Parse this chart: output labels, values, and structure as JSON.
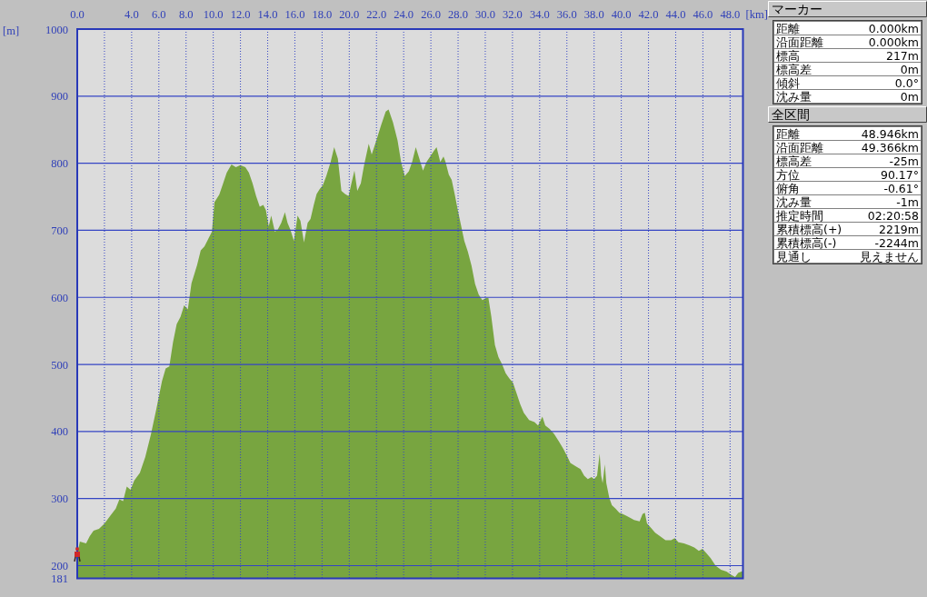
{
  "chart_data": [
    {
      "type": "area",
      "xlabel": "[km]",
      "ylabel": "[m]",
      "x": [
        0,
        0.19,
        0.65,
        0.92,
        1.2,
        1.6,
        2.01,
        2.42,
        2.83,
        3.1,
        3.37,
        3.64,
        3.92,
        4.19,
        4.6,
        5.0,
        5.41,
        5.82,
        6.23,
        6.5,
        6.77,
        7.04,
        7.31,
        7.59,
        7.86,
        8.13,
        8.4,
        8.81,
        9.08,
        9.35,
        9.63,
        9.9,
        10.09,
        10.44,
        10.71,
        10.99,
        11.34,
        11.66,
        11.99,
        12.36,
        12.62,
        12.89,
        13.15,
        13.42,
        13.68,
        13.87,
        14.08,
        14.26,
        14.53,
        14.74,
        15.0,
        15.27,
        15.46,
        15.67,
        15.93,
        16.2,
        16.41,
        16.67,
        16.94,
        17.15,
        17.39,
        17.6,
        17.84,
        18.05,
        18.31,
        18.63,
        18.89,
        19.16,
        19.42,
        19.69,
        19.95,
        20.16,
        20.38,
        20.59,
        20.85,
        21.09,
        21.43,
        21.65,
        21.96,
        22.33,
        22.68,
        22.89,
        23.21,
        23.55,
        23.81,
        24.08,
        24.38,
        24.62,
        24.89,
        25.15,
        25.42,
        25.68,
        25.95,
        26.21,
        26.42,
        26.69,
        26.93,
        27.08,
        27.32,
        27.53,
        27.75,
        27.98,
        28.2,
        28.46,
        28.72,
        28.99,
        29.25,
        29.52,
        29.78,
        30.05,
        30.23,
        30.44,
        30.71,
        30.97,
        31.24,
        31.5,
        31.77,
        32.03,
        32.3,
        32.56,
        32.83,
        33.22,
        33.62,
        33.88,
        34.2,
        34.41,
        34.73,
        35.07,
        35.42,
        35.74,
        36.0,
        36.26,
        36.66,
        37.0,
        37.27,
        37.54,
        37.81,
        38.0,
        38.22,
        38.41,
        38.52,
        38.63,
        38.79,
        38.9,
        39.12,
        39.31,
        39.58,
        39.85,
        40.12,
        40.39,
        40.67,
        40.94,
        41.35,
        41.56,
        41.73,
        41.89,
        42.16,
        42.49,
        42.84,
        43.25,
        43.66,
        43.93,
        44.2,
        44.61,
        45.02,
        45.37,
        45.7,
        45.97,
        46.24,
        46.57,
        46.93,
        47.33,
        47.74,
        48.1,
        48.37,
        48.59,
        48.83,
        48.946
      ],
      "values": [
        217,
        236,
        233,
        244,
        252,
        255,
        263,
        274,
        285,
        299,
        296,
        318,
        313,
        327,
        338,
        362,
        395,
        434,
        475,
        494,
        497,
        533,
        560,
        571,
        588,
        582,
        621,
        648,
        670,
        676,
        687,
        698,
        742,
        753,
        769,
        786,
        798,
        794,
        797,
        794,
        786,
        770,
        751,
        735,
        738,
        730,
        706,
        722,
        698,
        701,
        711,
        727,
        711,
        701,
        684,
        722,
        714,
        682,
        711,
        717,
        738,
        754,
        762,
        767,
        781,
        802,
        824,
        807,
        759,
        754,
        751,
        770,
        789,
        759,
        770,
        797,
        829,
        813,
        832,
        856,
        877,
        880,
        861,
        834,
        802,
        781,
        788,
        802,
        824,
        807,
        789,
        802,
        810,
        818,
        824,
        802,
        810,
        802,
        783,
        775,
        754,
        730,
        709,
        684,
        668,
        647,
        620,
        604,
        596,
        599,
        599,
        572,
        529,
        511,
        500,
        487,
        479,
        473,
        457,
        441,
        428,
        417,
        414,
        409,
        422,
        409,
        404,
        396,
        385,
        374,
        364,
        353,
        348,
        344,
        334,
        329,
        332,
        329,
        334,
        367,
        334,
        323,
        351,
        323,
        301,
        290,
        285,
        279,
        277,
        274,
        271,
        268,
        266,
        277,
        279,
        263,
        257,
        249,
        244,
        238,
        238,
        241,
        235,
        233,
        230,
        227,
        222,
        225,
        219,
        211,
        200,
        194,
        191,
        186,
        183,
        189,
        191,
        192
      ],
      "color": "#78a540",
      "xlim": [
        0,
        48.946
      ],
      "ylim": [
        181,
        1000
      ],
      "xticks": [
        {
          "value": 0,
          "label": "0.0"
        },
        {
          "value": 2,
          "label": null
        },
        {
          "value": 4,
          "label": "4.0"
        },
        {
          "value": 6,
          "label": "6.0"
        },
        {
          "value": 8,
          "label": "8.0"
        },
        {
          "value": 10,
          "label": "10.0"
        },
        {
          "value": 12,
          "label": "12.0"
        },
        {
          "value": 14,
          "label": "14.0"
        },
        {
          "value": 16,
          "label": "16.0"
        },
        {
          "value": 18,
          "label": "18.0"
        },
        {
          "value": 20,
          "label": "20.0"
        },
        {
          "value": 22,
          "label": "22.0"
        },
        {
          "value": 24,
          "label": "24.0"
        },
        {
          "value": 26,
          "label": "26.0"
        },
        {
          "value": 28,
          "label": "28.0"
        },
        {
          "value": 30,
          "label": "30.0"
        },
        {
          "value": 32,
          "label": "32.0"
        },
        {
          "value": 34,
          "label": "34.0"
        },
        {
          "value": 36,
          "label": "36.0"
        },
        {
          "value": 38,
          "label": "38.0"
        },
        {
          "value": 40,
          "label": "40.0"
        },
        {
          "value": 42,
          "label": "42.0"
        },
        {
          "value": 44,
          "label": "44.0"
        },
        {
          "value": 46,
          "label": "46.0"
        },
        {
          "value": 48,
          "label": "48.0"
        }
      ],
      "yticks": [
        181,
        200,
        300,
        400,
        500,
        600,
        700,
        800,
        900,
        1000
      ],
      "grid": true
    },
    {
      "type": "other",
      "title": "マーカー",
      "annotations": [
        "距離",
        "0.000km",
        "沿面距離",
        "0.000km",
        "標高",
        "217m",
        "標高差",
        "0m",
        "傾斜",
        "0.0°",
        "沈み量",
        "0m"
      ]
    },
    {
      "type": "other",
      "title": "全区間",
      "annotations": [
        "距離",
        "48.946km",
        "沿面距離",
        "49.366km",
        "標高差",
        "-25m",
        "方位",
        "90.17°",
        "俯角",
        "-0.61°",
        "沈み量",
        "-1m",
        "推定時間",
        "02:20:58",
        "累積標高(+)",
        "2219m",
        "累積標高(-)",
        "-2244m",
        "見通し",
        "見えません"
      ]
    }
  ]
}
